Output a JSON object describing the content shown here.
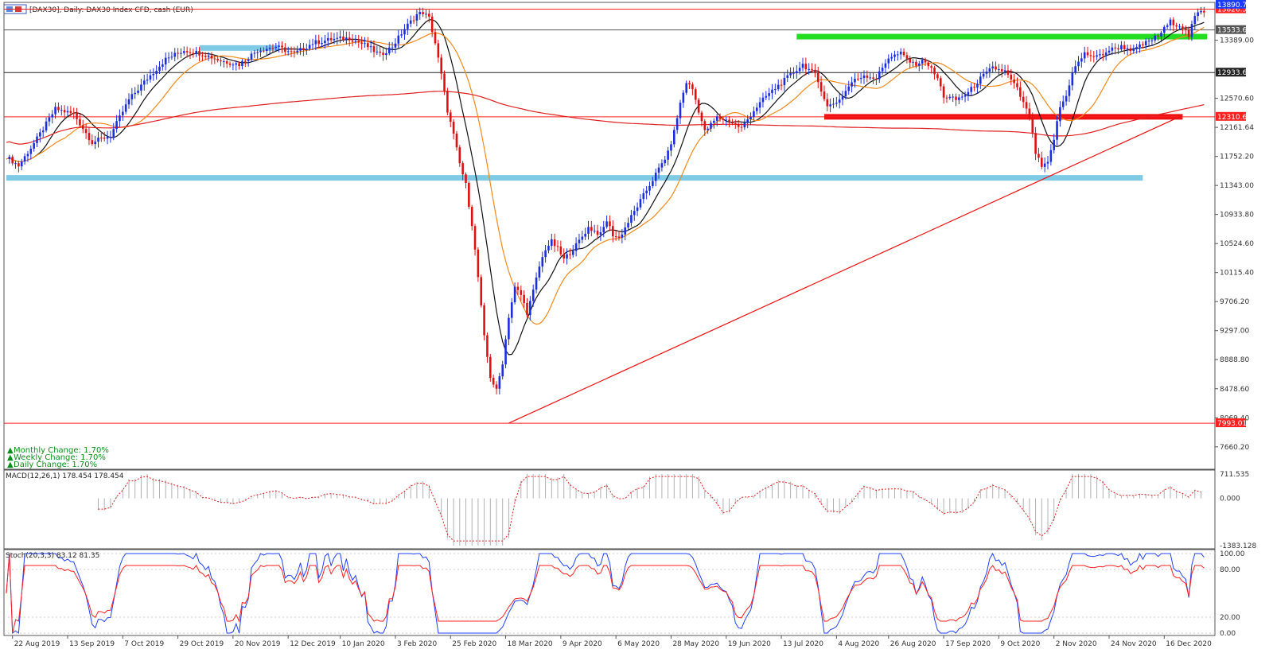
{
  "window": {
    "title": "[DAX30], Daily:  DAX30 Index CFD, cash (EUR)"
  },
  "changes": {
    "monthly": "Monthly Change: 1.70%",
    "weekly": "Weekly Change: 1.70%",
    "daily": "Daily Change: 1.70%"
  },
  "chart_data": {
    "type": "candlestick",
    "instrument": "DAX30",
    "timeframe": "Daily",
    "y_range": [
      7400,
      13900
    ],
    "price_ticks": [
      "13389.00",
      "12570.60",
      "12161.64",
      "11752.20",
      "11343.00",
      "10933.80",
      "10524.60",
      "10115.40",
      "9706.20",
      "9297.00",
      "8888.80",
      "8478.60",
      "8069.40",
      "7660.20"
    ],
    "x_labels": [
      "22 Aug 2019",
      "13 Sep 2019",
      "7 Oct 2019",
      "29 Oct 2019",
      "20 Nov 2019",
      "12 Dec 2019",
      "10 Jan 2020",
      "3 Feb 2020",
      "25 Feb 2020",
      "18 Mar 2020",
      "9 Apr 2020",
      "6 May 2020",
      "28 May 2020",
      "19 Jun 2020",
      "13 Jul 2020",
      "4 Aug 2020",
      "26 Aug 2020",
      "17 Sep 2020",
      "9 Oct 2020",
      "2 Nov 2020",
      "24 Nov 2020",
      "16 Dec 2020"
    ],
    "price_path": [
      [
        0,
        11750
      ],
      [
        4,
        11620
      ],
      [
        10,
        12000
      ],
      [
        16,
        12420
      ],
      [
        22,
        12350
      ],
      [
        28,
        11950
      ],
      [
        34,
        12050
      ],
      [
        40,
        12550
      ],
      [
        46,
        12850
      ],
      [
        52,
        13120
      ],
      [
        58,
        13250
      ],
      [
        64,
        13200
      ],
      [
        70,
        13100
      ],
      [
        76,
        13050
      ],
      [
        82,
        13250
      ],
      [
        88,
        13300
      ],
      [
        94,
        13200
      ],
      [
        100,
        13350
      ],
      [
        106,
        13400
      ],
      [
        112,
        13420
      ],
      [
        118,
        13300
      ],
      [
        122,
        13180
      ],
      [
        126,
        13300
      ],
      [
        130,
        13550
      ],
      [
        134,
        13750
      ],
      [
        136,
        13780
      ],
      [
        138,
        13700
      ],
      [
        140,
        13350
      ],
      [
        142,
        12900
      ],
      [
        144,
        12400
      ],
      [
        146,
        12050
      ],
      [
        148,
        11650
      ],
      [
        150,
        11350
      ],
      [
        152,
        10800
      ],
      [
        154,
        10050
      ],
      [
        156,
        9200
      ],
      [
        158,
        8650
      ],
      [
        160,
        8450
      ],
      [
        162,
        8850
      ],
      [
        164,
        9500
      ],
      [
        166,
        9900
      ],
      [
        168,
        9800
      ],
      [
        170,
        9550
      ],
      [
        172,
        9850
      ],
      [
        174,
        10200
      ],
      [
        176,
        10450
      ],
      [
        178,
        10550
      ],
      [
        180,
        10450
      ],
      [
        182,
        10300
      ],
      [
        186,
        10500
      ],
      [
        190,
        10750
      ],
      [
        194,
        10650
      ],
      [
        196,
        10850
      ],
      [
        198,
        10650
      ],
      [
        200,
        10600
      ],
      [
        204,
        10900
      ],
      [
        208,
        11200
      ],
      [
        212,
        11500
      ],
      [
        216,
        11800
      ],
      [
        218,
        12100
      ],
      [
        220,
        12500
      ],
      [
        222,
        12800
      ],
      [
        224,
        12700
      ],
      [
        226,
        12400
      ],
      [
        228,
        12100
      ],
      [
        232,
        12300
      ],
      [
        236,
        12250
      ],
      [
        240,
        12150
      ],
      [
        244,
        12400
      ],
      [
        248,
        12600
      ],
      [
        252,
        12750
      ],
      [
        256,
        12900
      ],
      [
        260,
        13050
      ],
      [
        264,
        12900
      ],
      [
        266,
        12700
      ],
      [
        268,
        12450
      ],
      [
        272,
        12550
      ],
      [
        276,
        12800
      ],
      [
        280,
        12900
      ],
      [
        284,
        12850
      ],
      [
        288,
        13150
      ],
      [
        292,
        13200
      ],
      [
        296,
        13050
      ],
      [
        300,
        13100
      ],
      [
        304,
        12850
      ],
      [
        306,
        12600
      ],
      [
        310,
        12550
      ],
      [
        314,
        12650
      ],
      [
        318,
        12850
      ],
      [
        322,
        13000
      ],
      [
        326,
        12950
      ],
      [
        330,
        12700
      ],
      [
        334,
        12300
      ],
      [
        336,
        11800
      ],
      [
        338,
        11600
      ],
      [
        340,
        11650
      ],
      [
        342,
        12000
      ],
      [
        344,
        12450
      ],
      [
        346,
        12600
      ],
      [
        348,
        12950
      ],
      [
        352,
        13200
      ],
      [
        356,
        13150
      ],
      [
        360,
        13250
      ],
      [
        364,
        13300
      ],
      [
        368,
        13250
      ],
      [
        372,
        13350
      ],
      [
        376,
        13450
      ],
      [
        380,
        13650
      ],
      [
        384,
        13580
      ],
      [
        386,
        13450
      ],
      [
        388,
        13720
      ],
      [
        390,
        13800
      ]
    ],
    "hlines": [
      {
        "value": 13826.52,
        "label": "13826.52",
        "color": "#ff2020"
      },
      {
        "value": 13533.68,
        "label": "13533.68",
        "color": "#555555"
      },
      {
        "value": 12933.63,
        "label": "12933.63",
        "color": "#222222"
      },
      {
        "value": 12310.65,
        "label": "12310.65",
        "color": "#ff2020"
      },
      {
        "value": 7993.01,
        "label": "7993.01",
        "color": "#ff2020"
      }
    ],
    "last_price": {
      "value": 13890.79,
      "label": "13890.79",
      "color": "#1a3cff"
    },
    "zones": [
      {
        "from_idx": 0,
        "to_idx": 371,
        "value": 11450,
        "color": "#7fcbe6"
      },
      {
        "from_idx": 63,
        "to_idx": 89,
        "value": 13280,
        "color": "#7fcbe6"
      },
      {
        "from_idx": 258,
        "to_idx": 392,
        "value": 13440,
        "color": "#22dd22"
      },
      {
        "from_idx": 267,
        "to_idx": 384,
        "value": 12310,
        "color": "#ee1111"
      }
    ],
    "trendline": {
      "from": [
        164,
        7993
      ],
      "to": [
        384,
        12330
      ],
      "color": "#ee1111"
    },
    "moving_averages": [
      {
        "period": 10,
        "color": "#111111"
      },
      {
        "period": 20,
        "color": "#f28a1c"
      },
      {
        "period": 200,
        "color": "#e02020"
      }
    ],
    "macd": {
      "label": "MACD(12,26,1) 178.454 178.454",
      "ticks": [
        "711.535",
        "0.000",
        "-1383.128"
      ],
      "range": [
        -1383.128,
        711.535
      ]
    },
    "stoch": {
      "label": "Stoch(20,3,3) 83.12 81.35",
      "ticks": [
        "100.00",
        "80.00",
        "20.00",
        "0.00"
      ],
      "range": [
        0,
        100
      ],
      "k_color": "#2040ff",
      "d_color": "#ff2020"
    }
  }
}
